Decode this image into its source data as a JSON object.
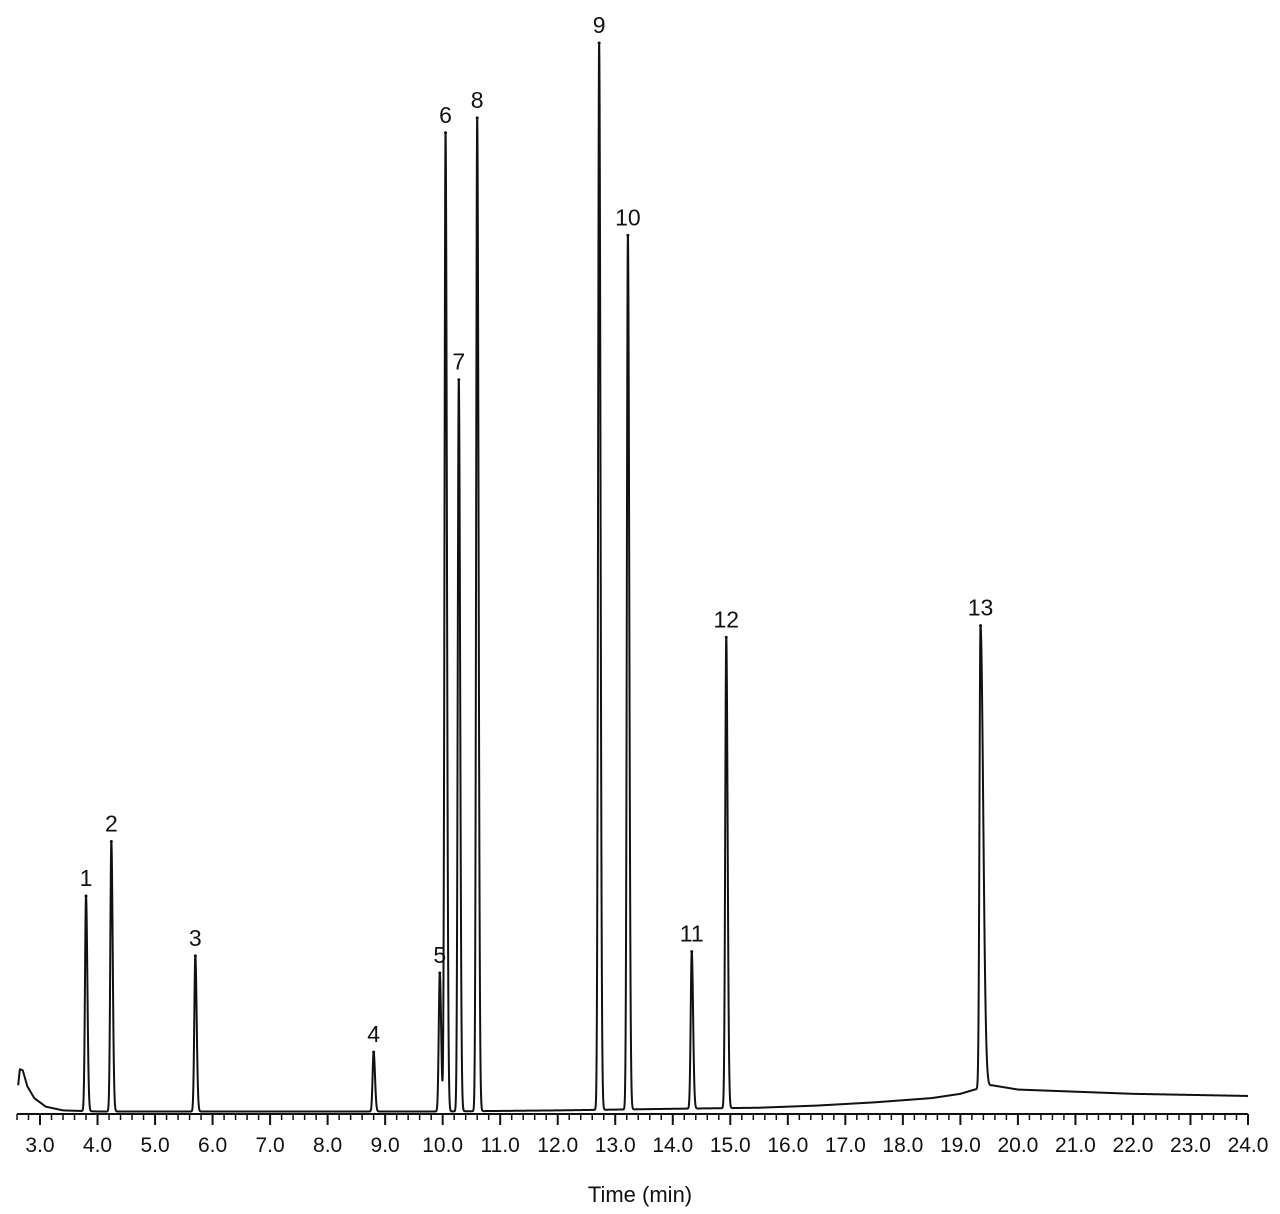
{
  "chart_data": {
    "type": "line",
    "title": "",
    "xlabel": "Time (min)",
    "ylabel": "",
    "xlim": [
      2.6,
      24.0
    ],
    "ylim": [
      0,
      100
    ],
    "x_ticks": [
      "3.0",
      "4.0",
      "5.0",
      "6.0",
      "7.0",
      "8.0",
      "9.0",
      "10.0",
      "11.0",
      "12.0",
      "13.0",
      "14.0",
      "15.0",
      "16.0",
      "17.0",
      "18.0",
      "19.0",
      "20.0",
      "21.0",
      "22.0",
      "23.0",
      "24.0"
    ],
    "grid": false,
    "line_color": "#111111",
    "peaks": [
      {
        "label": "1",
        "x": 3.8,
        "y": 20.2
      },
      {
        "label": "2",
        "x": 4.24,
        "y": 25.3
      },
      {
        "label": "3",
        "x": 5.7,
        "y": 14.6
      },
      {
        "label": "4",
        "x": 8.8,
        "y": 5.6
      },
      {
        "label": "5",
        "x": 9.95,
        "y": 13.0
      },
      {
        "label": "6",
        "x": 10.05,
        "y": 91.6
      },
      {
        "label": "7",
        "x": 10.28,
        "y": 68.5
      },
      {
        "label": "8",
        "x": 10.6,
        "y": 93.0
      },
      {
        "label": "9",
        "x": 12.72,
        "y": 100.0
      },
      {
        "label": "10",
        "x": 13.22,
        "y": 82.0
      },
      {
        "label": "11",
        "x": 14.33,
        "y": 15.0
      },
      {
        "label": "12",
        "x": 14.93,
        "y": 44.4
      },
      {
        "label": "13",
        "x": 19.35,
        "y": 45.5
      }
    ],
    "baseline": [
      {
        "x": 2.62,
        "y": 2.5
      },
      {
        "x": 2.65,
        "y": 4.0
      },
      {
        "x": 2.7,
        "y": 3.9
      },
      {
        "x": 2.78,
        "y": 2.4
      },
      {
        "x": 2.9,
        "y": 1.3
      },
      {
        "x": 3.1,
        "y": 0.5
      },
      {
        "x": 3.4,
        "y": 0.15
      },
      {
        "x": 4.0,
        "y": 0.05
      },
      {
        "x": 10.0,
        "y": 0.05
      },
      {
        "x": 12.0,
        "y": 0.15
      },
      {
        "x": 14.0,
        "y": 0.3
      },
      {
        "x": 15.5,
        "y": 0.4
      },
      {
        "x": 16.5,
        "y": 0.6
      },
      {
        "x": 17.5,
        "y": 0.9
      },
      {
        "x": 18.5,
        "y": 1.3
      },
      {
        "x": 19.0,
        "y": 1.7
      },
      {
        "x": 19.25,
        "y": 2.1
      },
      {
        "x": 19.55,
        "y": 2.5
      },
      {
        "x": 20.0,
        "y": 2.1
      },
      {
        "x": 21.0,
        "y": 1.9
      },
      {
        "x": 22.0,
        "y": 1.7
      },
      {
        "x": 23.0,
        "y": 1.6
      },
      {
        "x": 24.0,
        "y": 1.5
      }
    ]
  }
}
